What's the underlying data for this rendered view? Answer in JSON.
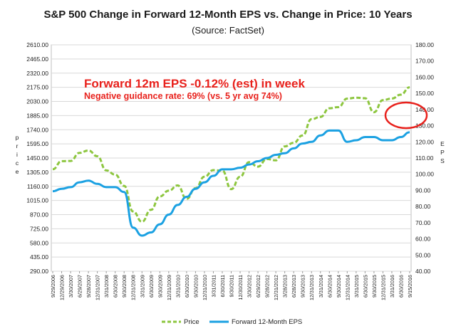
{
  "chart_data": {
    "type": "line",
    "title": "S&P 500 Change in Forward 12-Month EPS vs. Change in Price: 10 Years",
    "subtitle": "(Source: FactSet)",
    "ylabel_left": "Price",
    "ylabel_right": "EPS",
    "ylim_left": [
      290,
      2610
    ],
    "ylim_right": [
      40,
      180
    ],
    "yticks_left": [
      "2610.00",
      "2465.00",
      "2320.00",
      "2175.00",
      "2030.00",
      "1885.00",
      "1740.00",
      "1595.00",
      "1450.00",
      "1305.00",
      "1160.00",
      "1015.00",
      "870.00",
      "725.00",
      "580.00",
      "435.00",
      "290.00"
    ],
    "yticks_right": [
      "180.00",
      "170.00",
      "160.00",
      "150.00",
      "140.00",
      "130.00",
      "120.00",
      "110.00",
      "100.00",
      "90.00",
      "80.00",
      "70.00",
      "60.00",
      "50.00",
      "40.00"
    ],
    "x_labels": [
      "9/29/2006",
      "12/29/2006",
      "3/30/2007",
      "6/29/2007",
      "9/28/2007",
      "12/31/2007",
      "3/31/2008",
      "6/30/2008",
      "9/30/2008",
      "12/31/2008",
      "3/31/2009",
      "6/30/2009",
      "9/30/2009",
      "12/31/2009",
      "3/31/2010",
      "6/30/2010",
      "9/30/2010",
      "12/31/2010",
      "3/31/2011",
      "6/30/2011",
      "9/30/2011",
      "12/30/2011",
      "3/30/2012",
      "6/29/2012",
      "9/28/2012",
      "12/31/2012",
      "3/28/2013",
      "6/28/2013",
      "9/30/2013",
      "12/31/2013",
      "3/31/2014",
      "6/30/2014",
      "9/30/2014",
      "12/31/2014",
      "3/31/2015",
      "6/30/2015",
      "9/30/2015",
      "12/31/2015",
      "3/31/2016",
      "6/30/2016",
      "9/15/2016"
    ],
    "series": [
      {
        "name": "Price",
        "color": "#8dc63f",
        "style": "dashed",
        "axis": "left",
        "values": [
          1335,
          1418,
          1420,
          1503,
          1527,
          1468,
          1323,
          1280,
          1165,
          903,
          798,
          919,
          1057,
          1115,
          1169,
          1031,
          1141,
          1258,
          1326,
          1321,
          1131,
          1258,
          1408,
          1362,
          1440,
          1426,
          1569,
          1606,
          1682,
          1848,
          1872,
          1960,
          1972,
          2059,
          2068,
          2063,
          1920,
          2044,
          2060,
          2099,
          2175
        ]
      },
      {
        "name": "Forward 12-Month EPS",
        "color": "#1ba1e2",
        "style": "solid",
        "axis": "right",
        "values": [
          89.5,
          91,
          92,
          95,
          96,
          94,
          92,
          92,
          89,
          67,
          62,
          64,
          69,
          75,
          81,
          86,
          91,
          95,
          99,
          103,
          103,
          104,
          106,
          108,
          110,
          112,
          113,
          116,
          119,
          120,
          124,
          127,
          127,
          120,
          121,
          123,
          123,
          121,
          121,
          123,
          126
        ]
      }
    ],
    "annotations": {
      "headline": "Forward 12m EPS -0.12% (est) in week",
      "subline": "Negative guidance rate: 69% (vs. 5 yr avg 74%)"
    },
    "highlight_circle": {
      "color": "#e8211c"
    },
    "legend_placement": "bottom-center",
    "grid": "horizontal"
  }
}
